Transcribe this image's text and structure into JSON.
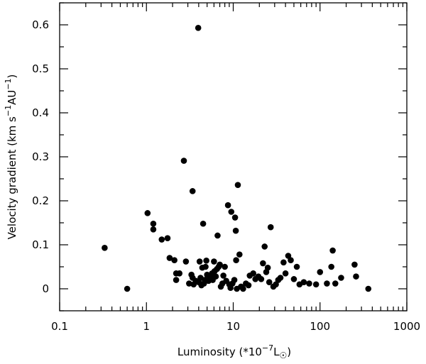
{
  "chart_data": {
    "type": "scatter",
    "title": "",
    "xlabel": {
      "prefix": "Luminosity (*10",
      "exp": "−7",
      "unit": "L",
      "suffix": ")"
    },
    "ylabel": {
      "prefix": "Velocity gradient (km s",
      "exp1": "−1",
      "mid": "AU",
      "exp2": "−1",
      "suffix": ")"
    },
    "xscale": "log",
    "xlim": [
      0.1,
      1000
    ],
    "ylim": [
      -0.05,
      0.65
    ],
    "xticks": [
      {
        "value": 0.1,
        "label": "0.1"
      },
      {
        "value": 1,
        "label": "1"
      },
      {
        "value": 10,
        "label": "10"
      },
      {
        "value": 100,
        "label": "100"
      },
      {
        "value": 1000,
        "label": "1000"
      }
    ],
    "yticks": [
      {
        "value": 0,
        "label": "0"
      },
      {
        "value": 0.1,
        "label": "0.1"
      },
      {
        "value": 0.2,
        "label": "0.2"
      },
      {
        "value": 0.3,
        "label": "0.3"
      },
      {
        "value": 0.4,
        "label": "0.4"
      },
      {
        "value": 0.5,
        "label": "0.5"
      },
      {
        "value": 0.6,
        "label": "0.6"
      }
    ],
    "grid": false,
    "marker_color": "#000000",
    "points": [
      {
        "x": 0.33,
        "y": 0.093
      },
      {
        "x": 0.6,
        "y": 0.0
      },
      {
        "x": 1.03,
        "y": 0.172
      },
      {
        "x": 1.2,
        "y": 0.148
      },
      {
        "x": 1.2,
        "y": 0.135
      },
      {
        "x": 1.5,
        "y": 0.112
      },
      {
        "x": 1.75,
        "y": 0.115
      },
      {
        "x": 1.85,
        "y": 0.07
      },
      {
        "x": 2.1,
        "y": 0.065
      },
      {
        "x": 2.2,
        "y": 0.035
      },
      {
        "x": 2.2,
        "y": 0.02
      },
      {
        "x": 2.4,
        "y": 0.035
      },
      {
        "x": 2.7,
        "y": 0.291
      },
      {
        "x": 2.85,
        "y": 0.062
      },
      {
        "x": 3.1,
        "y": 0.012
      },
      {
        "x": 3.3,
        "y": 0.032
      },
      {
        "x": 3.4,
        "y": 0.222
      },
      {
        "x": 3.4,
        "y": 0.025
      },
      {
        "x": 3.5,
        "y": 0.01
      },
      {
        "x": 3.7,
        "y": 0.018
      },
      {
        "x": 3.95,
        "y": 0.593
      },
      {
        "x": 4.0,
        "y": 0.015
      },
      {
        "x": 4.1,
        "y": 0.062
      },
      {
        "x": 4.2,
        "y": 0.025
      },
      {
        "x": 4.3,
        "y": 0.008
      },
      {
        "x": 4.4,
        "y": 0.048
      },
      {
        "x": 4.5,
        "y": 0.148
      },
      {
        "x": 4.6,
        "y": 0.012
      },
      {
        "x": 4.7,
        "y": 0.02
      },
      {
        "x": 4.8,
        "y": 0.05
      },
      {
        "x": 4.9,
        "y": 0.064
      },
      {
        "x": 5.0,
        "y": 0.032
      },
      {
        "x": 5.2,
        "y": 0.018
      },
      {
        "x": 5.4,
        "y": 0.024
      },
      {
        "x": 5.5,
        "y": 0.028
      },
      {
        "x": 5.7,
        "y": 0.035
      },
      {
        "x": 5.8,
        "y": 0.02
      },
      {
        "x": 6.0,
        "y": 0.062
      },
      {
        "x": 6.1,
        "y": 0.04
      },
      {
        "x": 6.3,
        "y": 0.028
      },
      {
        "x": 6.5,
        "y": 0.045
      },
      {
        "x": 6.6,
        "y": 0.121
      },
      {
        "x": 6.8,
        "y": 0.05
      },
      {
        "x": 7.0,
        "y": 0.055
      },
      {
        "x": 7.2,
        "y": 0.005
      },
      {
        "x": 7.5,
        "y": 0.012
      },
      {
        "x": 7.7,
        "y": 0.03
      },
      {
        "x": 8.0,
        "y": 0.05
      },
      {
        "x": 8.3,
        "y": 0.018
      },
      {
        "x": 8.7,
        "y": 0.19
      },
      {
        "x": 9.0,
        "y": 0.01
      },
      {
        "x": 9.3,
        "y": 0.002
      },
      {
        "x": 9.5,
        "y": 0.175
      },
      {
        "x": 9.8,
        "y": 0.012
      },
      {
        "x": 10.3,
        "y": 0.02
      },
      {
        "x": 10.5,
        "y": 0.162
      },
      {
        "x": 10.7,
        "y": 0.132
      },
      {
        "x": 10.8,
        "y": 0.065
      },
      {
        "x": 11.0,
        "y": 0.0
      },
      {
        "x": 11.3,
        "y": 0.236
      },
      {
        "x": 11.8,
        "y": 0.078
      },
      {
        "x": 12.3,
        "y": 0.005
      },
      {
        "x": 13.0,
        "y": 0.0
      },
      {
        "x": 14.0,
        "y": 0.012
      },
      {
        "x": 15.0,
        "y": 0.008
      },
      {
        "x": 15.5,
        "y": 0.03
      },
      {
        "x": 17.0,
        "y": 0.035
      },
      {
        "x": 18.0,
        "y": 0.022
      },
      {
        "x": 19.5,
        "y": 0.028
      },
      {
        "x": 21.0,
        "y": 0.022
      },
      {
        "x": 22.0,
        "y": 0.058
      },
      {
        "x": 23.0,
        "y": 0.096
      },
      {
        "x": 24.0,
        "y": 0.038
      },
      {
        "x": 25.0,
        "y": 0.048
      },
      {
        "x": 26.0,
        "y": 0.015
      },
      {
        "x": 27.0,
        "y": 0.14
      },
      {
        "x": 29.0,
        "y": 0.005
      },
      {
        "x": 31.0,
        "y": 0.01
      },
      {
        "x": 33.0,
        "y": 0.02
      },
      {
        "x": 35.0,
        "y": 0.025
      },
      {
        "x": 38.0,
        "y": 0.06
      },
      {
        "x": 40.0,
        "y": 0.035
      },
      {
        "x": 43.0,
        "y": 0.075
      },
      {
        "x": 46.0,
        "y": 0.065
      },
      {
        "x": 50.0,
        "y": 0.022
      },
      {
        "x": 54.0,
        "y": 0.05
      },
      {
        "x": 58.0,
        "y": 0.01
      },
      {
        "x": 65.0,
        "y": 0.015
      },
      {
        "x": 75.0,
        "y": 0.012
      },
      {
        "x": 90.0,
        "y": 0.01
      },
      {
        "x": 100.0,
        "y": 0.038
      },
      {
        "x": 120.0,
        "y": 0.012
      },
      {
        "x": 135.0,
        "y": 0.05
      },
      {
        "x": 140.0,
        "y": 0.087
      },
      {
        "x": 150.0,
        "y": 0.012
      },
      {
        "x": 175.0,
        "y": 0.025
      },
      {
        "x": 250.0,
        "y": 0.055
      },
      {
        "x": 260.0,
        "y": 0.028
      },
      {
        "x": 360.0,
        "y": 0.0
      }
    ]
  }
}
